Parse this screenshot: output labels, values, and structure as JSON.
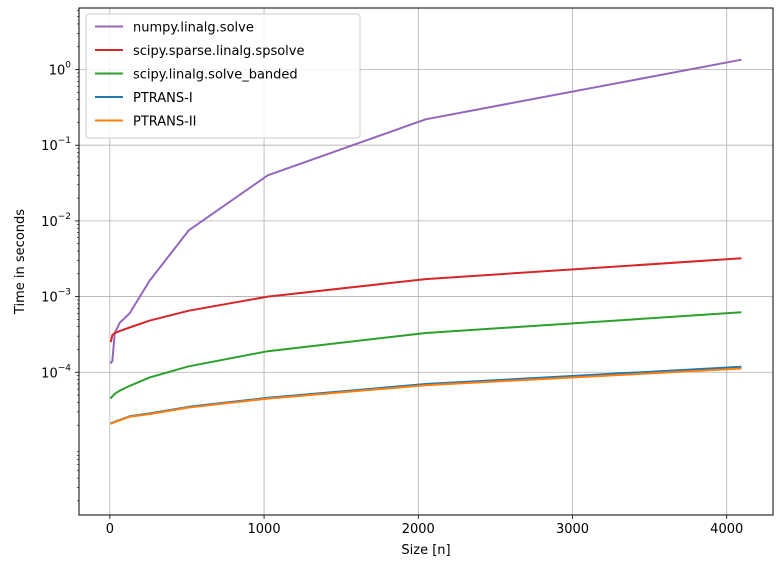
{
  "chart_data": {
    "type": "line",
    "title": "",
    "xlabel": "Size [n]",
    "ylabel": "Time in seconds",
    "xscale": "linear",
    "yscale": "log",
    "xlim": [
      -200,
      4300
    ],
    "ylim": [
      1.3e-06,
      6.5
    ],
    "xticks": [
      0,
      1000,
      2000,
      3000,
      4000
    ],
    "yticks": [
      {
        "value": 0.0001,
        "base": "10",
        "exp": "−4"
      },
      {
        "value": 0.001,
        "base": "10",
        "exp": "−3"
      },
      {
        "value": 0.01,
        "base": "10",
        "exp": "−2"
      },
      {
        "value": 0.1,
        "base": "10",
        "exp": "−1"
      },
      {
        "value": 1,
        "base": "10",
        "exp": "0"
      }
    ],
    "grid": true,
    "legend_position": "top-left",
    "x": [
      4,
      8,
      16,
      32,
      64,
      128,
      256,
      512,
      1024,
      2048,
      4096
    ],
    "series": [
      {
        "name": "numpy.linalg.solve",
        "color": "#9467bd",
        "values": [
          0.00013,
          0.000135,
          0.00014,
          0.00033,
          0.00045,
          0.0006,
          0.0016,
          0.0075,
          0.04,
          0.22,
          1.35
        ]
      },
      {
        "name": "scipy.sparse.linalg.spsolve",
        "color": "#d62728",
        "values": [
          0.00025,
          0.00026,
          0.00031,
          0.00033,
          0.00035,
          0.00039,
          0.00048,
          0.00065,
          0.001,
          0.0017,
          0.0032
        ]
      },
      {
        "name": "scipy.linalg.solve_banded",
        "color": "#2ca02c",
        "values": [
          4.5e-05,
          4.6e-05,
          4.8e-05,
          5.2e-05,
          5.7e-05,
          6.6e-05,
          8.5e-05,
          0.00012,
          0.00019,
          0.00033,
          0.00062
        ]
      },
      {
        "name": "PTRANS-I",
        "color": "#1f77b4",
        "values": [
          2.1e-05,
          2.12e-05,
          2.15e-05,
          2.22e-05,
          2.35e-05,
          2.62e-05,
          2.85e-05,
          3.5e-05,
          4.6e-05,
          7e-05,
          0.000118
        ]
      },
      {
        "name": "PTRANS-II",
        "color": "#ff7f0e",
        "values": [
          2.08e-05,
          2.1e-05,
          2.13e-05,
          2.2e-05,
          2.32e-05,
          2.58e-05,
          2.8e-05,
          3.42e-05,
          4.48e-05,
          6.75e-05,
          0.000112
        ]
      }
    ]
  }
}
